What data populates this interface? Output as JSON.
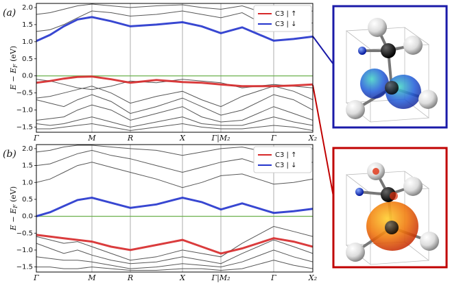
{
  "chart_data": [
    {
      "type": "line",
      "panel_label": "(a)",
      "ylabel": {
        "main": "E − E",
        "sub": "F",
        "unit": " (eV)"
      },
      "x": [
        0,
        20,
        40,
        60,
        81,
        109,
        137,
        175,
        213,
        241,
        269,
        300,
        346,
        375,
        403
      ],
      "xlim": [
        0,
        403
      ],
      "xticks": [
        {
          "value": 0,
          "label": "Γ"
        },
        {
          "value": 81,
          "label": "M"
        },
        {
          "value": 137,
          "label": "R"
        },
        {
          "value": 213,
          "label": "X"
        },
        {
          "value": 269,
          "label": "Γ|M₂"
        },
        {
          "value": 346,
          "label": "Γ"
        },
        {
          "value": 403,
          "label": "X₂"
        }
      ],
      "ylim": [
        -1.65,
        2.12
      ],
      "yticks": [
        {
          "value": -1.5,
          "label": "−1.5"
        },
        {
          "value": -1.0,
          "label": "−1.0"
        },
        {
          "value": -0.5,
          "label": "−0.5"
        },
        {
          "value": 0.0,
          "label": "0.0"
        },
        {
          "value": 0.5,
          "label": "0.5"
        },
        {
          "value": 1.0,
          "label": "1.0"
        },
        {
          "value": 1.5,
          "label": "1.5"
        },
        {
          "value": 2.0,
          "label": "2.0"
        }
      ],
      "fermi_level": 0,
      "fermi_color": "#6ab04c",
      "legend": "upper right",
      "grid": true,
      "bands_color": "#555555",
      "bands": [
        [
          1.3,
          1.35,
          1.5,
          1.7,
          1.9,
          1.85,
          1.75,
          1.8,
          1.9,
          1.8,
          1.7,
          1.85,
          1.35,
          1.4,
          1.55
        ],
        [
          1.8,
          1.85,
          1.95,
          2.05,
          2.1,
          2.05,
          2.0,
          2.05,
          2.08,
          2.0,
          1.95,
          2.05,
          1.75,
          1.8,
          1.9
        ],
        [
          -0.1,
          -0.15,
          -0.25,
          -0.35,
          -0.4,
          -0.3,
          -0.15,
          -0.2,
          -0.1,
          -0.15,
          -0.2,
          -0.35,
          -0.25,
          -0.3,
          -0.35
        ],
        [
          -0.65,
          -0.6,
          -0.5,
          -0.4,
          -0.3,
          -0.5,
          -0.8,
          -0.6,
          -0.45,
          -0.7,
          -0.9,
          -0.6,
          -0.3,
          -0.45,
          -0.7
        ],
        [
          -0.7,
          -0.8,
          -0.9,
          -0.7,
          -0.55,
          -0.75,
          -1.1,
          -0.9,
          -0.65,
          -0.9,
          -1.15,
          -1.0,
          -0.55,
          -0.7,
          -1.0
        ],
        [
          -1.3,
          -1.25,
          -1.2,
          -1.0,
          -0.85,
          -1.0,
          -1.3,
          -1.1,
          -0.9,
          -1.2,
          -1.35,
          -1.3,
          -0.9,
          -1.1,
          -1.3
        ],
        [
          -1.4,
          -1.45,
          -1.4,
          -1.3,
          -1.2,
          -1.35,
          -1.5,
          -1.35,
          -1.2,
          -1.4,
          -1.45,
          -1.45,
          -1.2,
          -1.35,
          -1.45
        ],
        [
          -1.55,
          -1.55,
          -1.5,
          -1.45,
          -1.4,
          -1.5,
          -1.6,
          -1.5,
          -1.4,
          -1.5,
          -1.55,
          -1.55,
          -1.45,
          -1.5,
          -1.6
        ]
      ],
      "series": [
        {
          "name": "C3 | ↑",
          "color": "#d62728",
          "values": [
            -0.2,
            -0.15,
            -0.08,
            -0.03,
            -0.02,
            -0.1,
            -0.2,
            -0.12,
            -0.18,
            -0.2,
            -0.25,
            -0.3,
            -0.3,
            -0.28,
            -0.25
          ]
        },
        {
          "name": "C3 | ↓",
          "color": "#2233cc",
          "values": [
            1.02,
            1.2,
            1.45,
            1.65,
            1.72,
            1.6,
            1.45,
            1.5,
            1.57,
            1.45,
            1.25,
            1.42,
            1.03,
            1.08,
            1.15
          ]
        }
      ]
    },
    {
      "type": "line",
      "panel_label": "(b)",
      "ylabel": {
        "main": "E − E",
        "sub": "F",
        "unit": " (eV)"
      },
      "x": [
        0,
        20,
        40,
        60,
        81,
        109,
        137,
        175,
        213,
        241,
        269,
        300,
        346,
        375,
        403
      ],
      "xlim": [
        0,
        403
      ],
      "xticks": [
        {
          "value": 0,
          "label": "Γ"
        },
        {
          "value": 81,
          "label": "M"
        },
        {
          "value": 137,
          "label": "R"
        },
        {
          "value": 213,
          "label": "X"
        },
        {
          "value": 269,
          "label": "Γ|M₂"
        },
        {
          "value": 346,
          "label": "Γ"
        },
        {
          "value": 403,
          "label": "X₂"
        }
      ],
      "ylim": [
        -1.65,
        2.12
      ],
      "yticks": [
        {
          "value": -1.5,
          "label": "−1.5"
        },
        {
          "value": -1.0,
          "label": "−1.0"
        },
        {
          "value": -0.5,
          "label": "−0.5"
        },
        {
          "value": 0.0,
          "label": "0.0"
        },
        {
          "value": 0.5,
          "label": "0.5"
        },
        {
          "value": 1.0,
          "label": "1.0"
        },
        {
          "value": 1.5,
          "label": "1.5"
        },
        {
          "value": 2.0,
          "label": "2.0"
        }
      ],
      "fermi_level": 0,
      "fermi_color": "#6ab04c",
      "legend": "upper right",
      "grid": true,
      "bands_color": "#555555",
      "bands": [
        [
          1.0,
          1.1,
          1.3,
          1.5,
          1.6,
          1.45,
          1.3,
          1.1,
          0.85,
          1.0,
          1.2,
          1.25,
          0.95,
          1.0,
          1.1
        ],
        [
          1.5,
          1.55,
          1.7,
          1.85,
          1.95,
          1.8,
          1.7,
          1.5,
          1.3,
          1.45,
          1.6,
          1.7,
          1.4,
          1.5,
          1.6
        ],
        [
          1.9,
          1.95,
          2.05,
          2.1,
          2.1,
          2.05,
          2.0,
          1.95,
          1.8,
          1.9,
          2.0,
          2.05,
          1.85,
          1.9,
          2.0
        ],
        [
          -0.6,
          -0.7,
          -0.8,
          -0.75,
          -0.9,
          -1.1,
          -1.3,
          -1.2,
          -1.0,
          -1.1,
          -1.2,
          -0.8,
          -0.3,
          -0.45,
          -0.6
        ],
        [
          -0.8,
          -0.95,
          -1.1,
          -1.0,
          -1.15,
          -1.3,
          -1.4,
          -1.35,
          -1.2,
          -1.3,
          -1.4,
          -1.1,
          -0.7,
          -0.9,
          -1.1
        ],
        [
          -1.2,
          -1.25,
          -1.3,
          -1.3,
          -1.35,
          -1.45,
          -1.55,
          -1.5,
          -1.4,
          -1.45,
          -1.5,
          -1.35,
          -1.0,
          -1.2,
          -1.35
        ],
        [
          -1.5,
          -1.5,
          -1.55,
          -1.55,
          -1.5,
          -1.55,
          -1.6,
          -1.6,
          -1.55,
          -1.55,
          -1.6,
          -1.55,
          -1.3,
          -1.45,
          -1.55
        ]
      ],
      "series": [
        {
          "name": "C3 | ↑",
          "color": "#d62728",
          "values": [
            -0.55,
            -0.6,
            -0.65,
            -0.7,
            -0.75,
            -0.9,
            -1.0,
            -0.85,
            -0.7,
            -0.9,
            -1.1,
            -0.95,
            -0.65,
            -0.75,
            -0.9
          ]
        },
        {
          "name": "C3 | ↓",
          "color": "#2233cc",
          "values": [
            0.0,
            0.12,
            0.3,
            0.48,
            0.55,
            0.4,
            0.25,
            0.35,
            0.55,
            0.42,
            0.2,
            0.38,
            0.1,
            0.15,
            0.22
          ]
        }
      ]
    }
  ]
}
